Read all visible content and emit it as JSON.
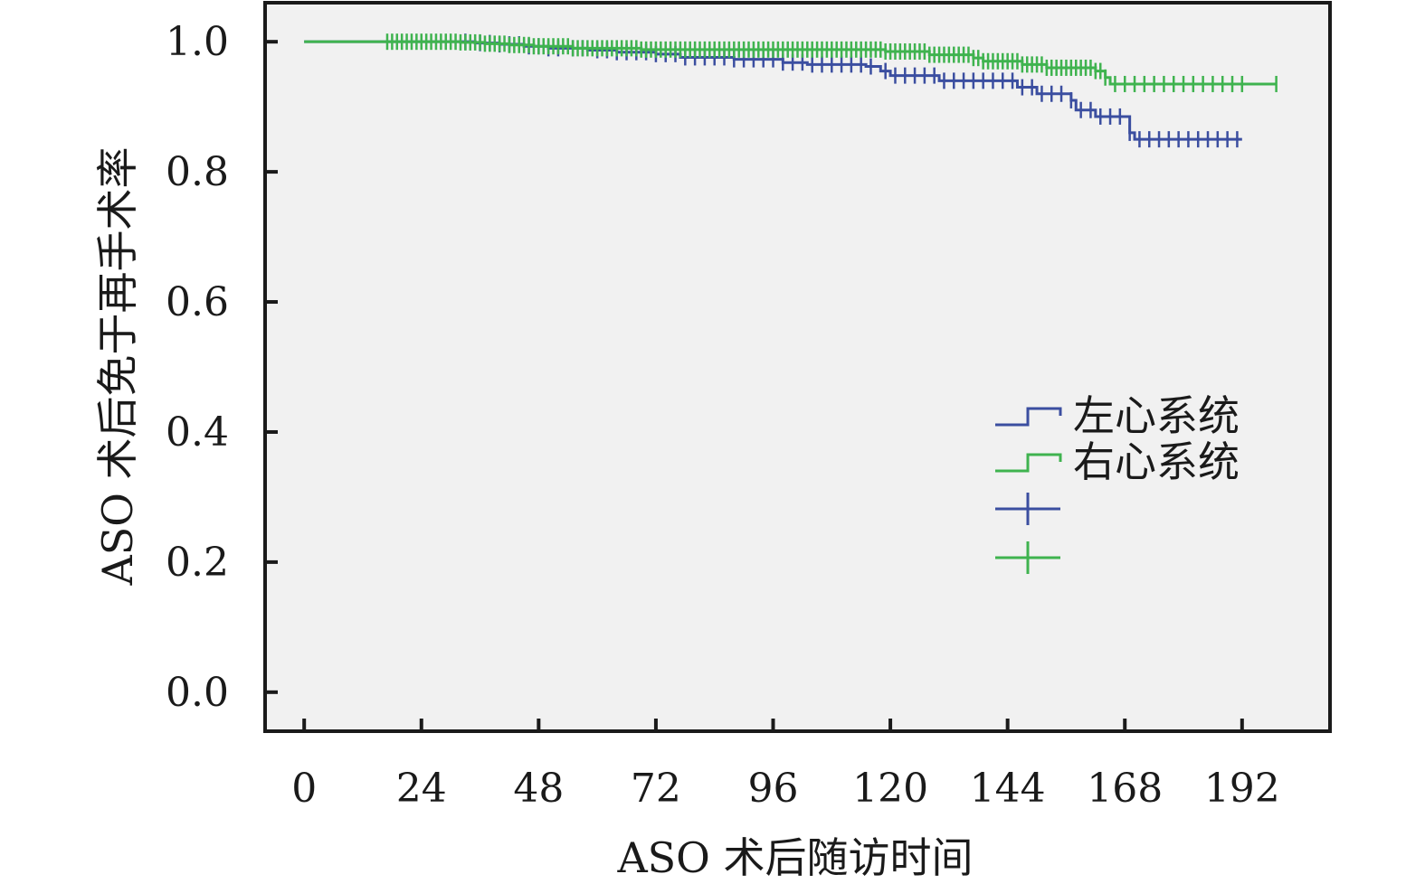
{
  "chart_data": {
    "type": "line",
    "subtype": "kaplan-meier",
    "title": "",
    "xlabel": "ASO 术后随访时间",
    "ylabel": "ASO 术后免于再手术率",
    "xlim": [
      -8,
      210
    ],
    "ylim": [
      -0.06,
      1.06
    ],
    "xticks": [
      0,
      24,
      48,
      72,
      96,
      120,
      144,
      168,
      192
    ],
    "xtick_labels": [
      "0",
      "24",
      "48",
      "72",
      "96",
      "120",
      "144",
      "168",
      "192"
    ],
    "yticks": [
      0.0,
      0.2,
      0.4,
      0.6,
      0.8,
      1.0
    ],
    "ytick_labels": [
      "0.0",
      "0.2",
      "0.4",
      "0.6",
      "0.8",
      "1.0"
    ],
    "grid": false,
    "legend_position": "right",
    "plot_background": "#f1f1f1",
    "series": [
      {
        "name": "左心系统",
        "color": "#3b4ea0",
        "steps": [
          [
            0,
            1.0
          ],
          [
            35,
            0.998
          ],
          [
            40,
            0.996
          ],
          [
            45,
            0.993
          ],
          [
            50,
            0.99
          ],
          [
            58,
            0.987
          ],
          [
            64,
            0.984
          ],
          [
            72,
            0.981
          ],
          [
            77,
            0.976
          ],
          [
            88,
            0.973
          ],
          [
            98,
            0.968
          ],
          [
            103,
            0.965
          ],
          [
            115,
            0.962
          ],
          [
            118,
            0.955
          ],
          [
            120,
            0.948
          ],
          [
            130,
            0.94
          ],
          [
            146,
            0.93
          ],
          [
            150,
            0.92
          ],
          [
            157,
            0.91
          ],
          [
            158,
            0.895
          ],
          [
            162,
            0.885
          ],
          [
            169,
            0.86
          ],
          [
            170,
            0.85
          ],
          [
            192,
            0.85
          ]
        ],
        "censor_times": [
          33,
          36,
          38,
          40,
          42,
          44,
          46,
          48,
          50,
          52,
          55,
          57,
          60,
          62,
          64,
          66,
          68,
          70,
          72,
          74,
          76,
          78,
          80,
          82,
          84,
          86,
          88,
          90,
          92,
          94,
          96,
          98,
          100,
          102,
          104,
          106,
          108,
          110,
          112,
          114,
          116,
          119,
          121,
          123,
          125,
          127,
          129,
          131,
          133,
          135,
          137,
          139,
          141,
          143,
          145,
          147,
          149,
          151,
          153,
          155,
          157,
          159,
          161,
          163,
          165,
          167,
          169,
          171,
          173,
          175,
          177,
          179,
          181,
          183,
          185,
          187,
          189,
          191
        ]
      },
      {
        "name": "右心系统",
        "color": "#3fb34f",
        "steps": [
          [
            0,
            1.0
          ],
          [
            32,
            0.999
          ],
          [
            37,
            0.997
          ],
          [
            42,
            0.995
          ],
          [
            47,
            0.993
          ],
          [
            55,
            0.99
          ],
          [
            69,
            0.988
          ],
          [
            119,
            0.985
          ],
          [
            128,
            0.98
          ],
          [
            137,
            0.975
          ],
          [
            139,
            0.97
          ],
          [
            147,
            0.965
          ],
          [
            152,
            0.96
          ],
          [
            162,
            0.955
          ],
          [
            164,
            0.945
          ],
          [
            165,
            0.935
          ],
          [
            199,
            0.935
          ]
        ],
        "censor_times": [
          17,
          18,
          19,
          20,
          21,
          22,
          23,
          24,
          25,
          26,
          27,
          28,
          29,
          30,
          31,
          32,
          33,
          34,
          35,
          36,
          37,
          38,
          39,
          40,
          41,
          42,
          43,
          44,
          45,
          46,
          47,
          48,
          49,
          50,
          51,
          52,
          53,
          54,
          55,
          56,
          57,
          58,
          59,
          60,
          61,
          62,
          63,
          64,
          65,
          66,
          67,
          68,
          69,
          70,
          71,
          72,
          73,
          74,
          75,
          76,
          77,
          78,
          79,
          80,
          81,
          82,
          83,
          84,
          85,
          86,
          87,
          88,
          89,
          90,
          91,
          92,
          93,
          94,
          95,
          96,
          97,
          98,
          99,
          100,
          101,
          102,
          103,
          104,
          105,
          106,
          107,
          108,
          109,
          110,
          111,
          112,
          113,
          114,
          115,
          116,
          117,
          118,
          119,
          120,
          121,
          122,
          123,
          124,
          125,
          126,
          127,
          128,
          129,
          130,
          131,
          132,
          133,
          134,
          135,
          136,
          137,
          138,
          139,
          140,
          141,
          142,
          143,
          144,
          145,
          146,
          147,
          148,
          149,
          150,
          151,
          152,
          153,
          154,
          155,
          156,
          157,
          158,
          159,
          160,
          161,
          162,
          163,
          164,
          166,
          168,
          170,
          172,
          174,
          176,
          178,
          180,
          182,
          184,
          186,
          188,
          190,
          192,
          199
        ]
      }
    ],
    "legend": [
      {
        "symbol": "step",
        "color": "#3b4ea0",
        "label": "左心系统"
      },
      {
        "symbol": "step",
        "color": "#3fb34f",
        "label": "右心系统"
      },
      {
        "symbol": "censor",
        "color": "#3b4ea0",
        "label": ""
      },
      {
        "symbol": "censor",
        "color": "#3fb34f",
        "label": ""
      }
    ]
  }
}
